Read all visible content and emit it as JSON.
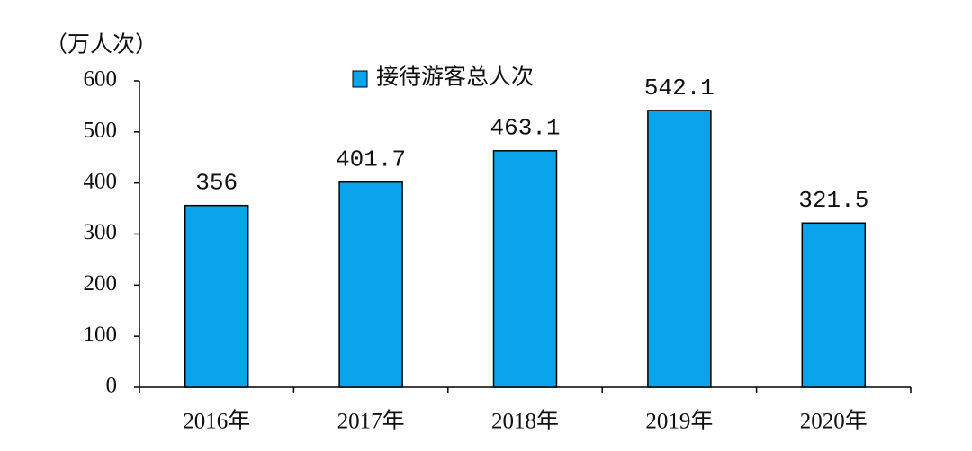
{
  "chart_data": {
    "type": "bar",
    "y_label": "（万人次）",
    "categories": [
      "2016年",
      "2017年",
      "2018年",
      "2019年",
      "2020年"
    ],
    "series": [
      {
        "name": "接待游客总人次",
        "color": "#0aa4ec",
        "values": [
          356,
          401.7,
          463.1,
          542.1,
          321.5
        ]
      }
    ],
    "ylim": [
      0,
      600
    ],
    "yticks": [
      0,
      100,
      200,
      300,
      400,
      500,
      600
    ],
    "grid": false
  }
}
